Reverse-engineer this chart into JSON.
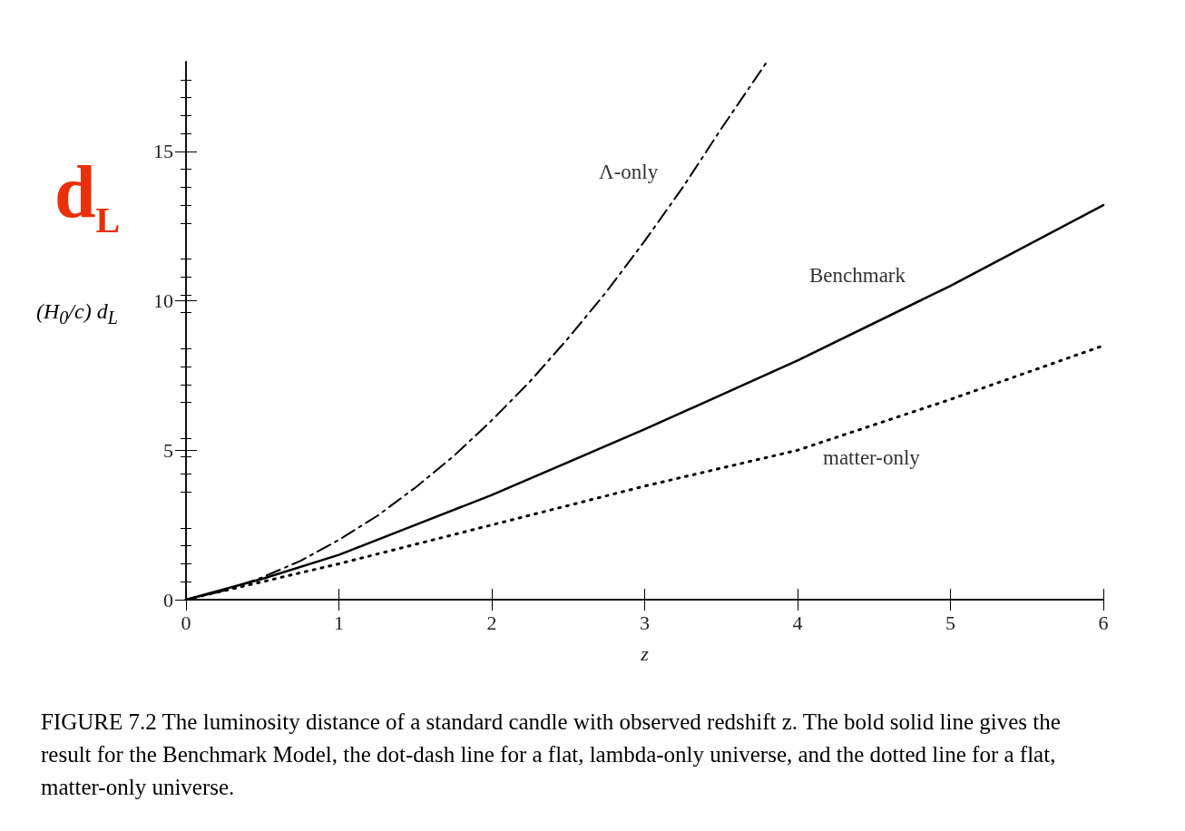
{
  "chart_data": {
    "type": "line",
    "xlabel": "z",
    "ylabel": "(H$_{0}$/c) d$_{L}$",
    "xlim": [
      0,
      6
    ],
    "xticks": [
      0,
      1,
      2,
      3,
      4,
      5,
      6
    ],
    "ylim": [
      0,
      18
    ],
    "yticks": [
      0,
      5,
      10,
      15
    ],
    "grid": false,
    "marker": "none",
    "series": [
      {
        "name": "Λ-only",
        "color": "#000000",
        "line_style": "dashed",
        "x": [
          0,
          0.25,
          0.5,
          0.75,
          1,
          1.25,
          1.5,
          1.75,
          2,
          2.25,
          2.5,
          2.75,
          3,
          3.25,
          3.5,
          3.8
        ],
        "values": [
          0,
          0.3,
          0.75,
          1.3,
          2,
          2.8,
          3.75,
          4.8,
          6,
          7.3,
          8.75,
          10.3,
          12,
          13.8,
          15.75,
          18
        ]
      },
      {
        "name": "Benchmark",
        "color": "#000000",
        "line_style": "solid",
        "x": [
          0,
          0.5,
          1,
          1.5,
          2,
          3,
          4,
          5,
          6
        ],
        "values": [
          0,
          0.7,
          1.5,
          2.5,
          3.5,
          5.7,
          8,
          10.5,
          13.2
        ]
      },
      {
        "name": "matter-only",
        "color": "#000000",
        "line_style": "dotted",
        "x": [
          0,
          0.5,
          1,
          2,
          3,
          4,
          5,
          6
        ],
        "values": [
          0,
          0.6,
          1.2,
          2.5,
          3.8,
          5,
          6.7,
          8.5
        ]
      }
    ],
    "annotations": [
      "d$_{L}$",
      "FIGURE 7.2   The luminosity distance of a standard candle with observed redshift z. The bold solid line gives the result for the Benchmark Model, the dot-dash line for a flat, lambda-only universe, and the dotted line for a flat, matter-only universe."
    ]
  }
}
